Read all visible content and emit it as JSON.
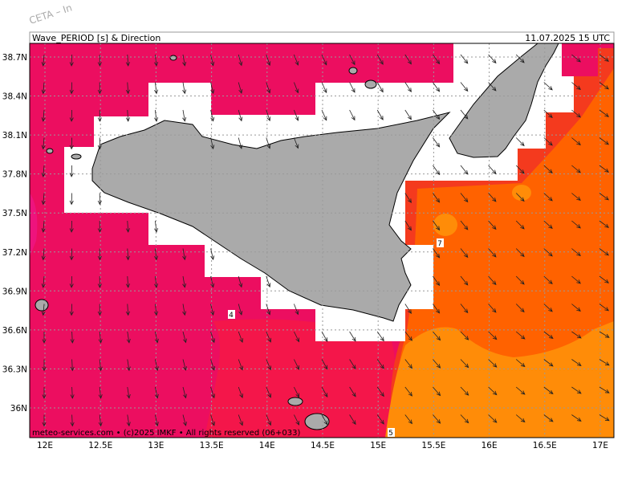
{
  "watermark": "CETA – In",
  "header": {
    "title": "Wave_PERIOD [s] & Direction",
    "timestamp": "11.07.2025 15 UTC"
  },
  "map": {
    "lat_labels": [
      "38.7N",
      "38.4N",
      "38.1N",
      "37.8N",
      "37.5N",
      "37.2N",
      "36.9N",
      "36.6N",
      "36.3N",
      "36N"
    ],
    "lon_labels": [
      "12E",
      "12.5E",
      "13E",
      "13.5E",
      "14E",
      "14.5E",
      "15E",
      "15.5E",
      "16E",
      "16.5E",
      "17E"
    ],
    "contour_labels": [
      "4",
      "7",
      "5"
    ]
  },
  "footer": "meteo-services.com • (c)2025 IMKF • All rights reserved (06+033)"
}
